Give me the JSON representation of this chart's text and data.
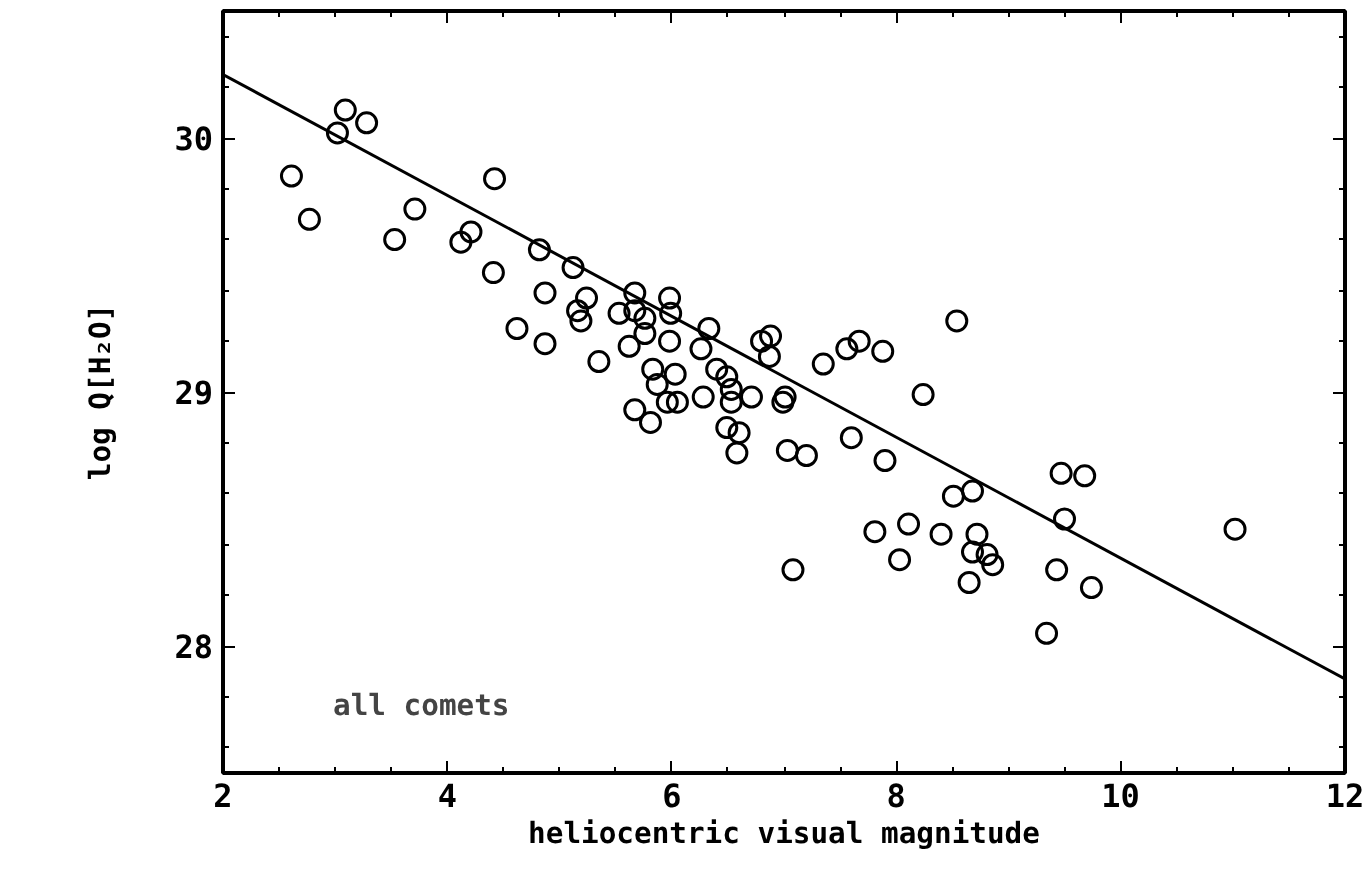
{
  "chart_data": {
    "type": "scatter",
    "xlabel": "heliocentric visual magnitude",
    "ylabel": "log Q[H₂O]",
    "xlim": [
      2,
      12
    ],
    "ylim": [
      27.5,
      30.5
    ],
    "xticks": [
      2,
      4,
      6,
      8,
      10,
      12
    ],
    "yticks": [
      28,
      29,
      30
    ],
    "grid": false,
    "annotations": [
      "all comets"
    ],
    "series": [
      {
        "marker": "circle",
        "color": "#000000",
        "x": [
          2.61,
          2.77,
          3.02,
          3.09,
          3.28,
          3.71,
          3.53,
          4.12,
          4.21,
          4.42,
          4.41,
          4.82,
          4.87,
          5.12,
          5.24,
          5.16,
          5.19,
          4.62,
          4.87,
          5.35,
          5.53,
          5.67,
          5.62,
          5.67,
          5.76,
          5.76,
          5.98,
          5.99,
          5.98,
          5.83,
          6.03,
          5.87,
          5.96,
          6.05,
          6.26,
          6.33,
          6.28,
          6.4,
          6.49,
          6.53,
          6.53,
          6.71,
          6.8,
          6.88,
          6.87,
          7.01,
          6.99,
          5.67,
          5.81,
          6.49,
          6.6,
          6.58,
          7.08,
          7.03,
          7.35,
          7.56,
          7.67,
          7.88,
          8.54,
          8.24,
          7.2,
          7.6,
          7.9,
          8.51,
          8.68,
          9.47,
          9.68,
          9.5,
          7.81,
          8.11,
          8.4,
          8.72,
          8.68,
          8.81,
          8.86,
          8.03,
          8.65,
          9.43,
          9.74,
          9.34,
          11.02
        ],
        "values": [
          29.85,
          29.68,
          30.02,
          30.11,
          30.06,
          29.72,
          29.6,
          29.59,
          29.63,
          29.84,
          29.47,
          29.56,
          29.39,
          29.49,
          29.37,
          29.32,
          29.28,
          29.25,
          29.19,
          29.12,
          29.31,
          29.39,
          29.18,
          29.32,
          29.29,
          29.23,
          29.37,
          29.31,
          29.2,
          29.09,
          29.07,
          29.03,
          28.96,
          28.96,
          29.17,
          29.25,
          28.98,
          29.09,
          29.06,
          29.01,
          28.96,
          28.98,
          29.2,
          29.22,
          29.14,
          28.98,
          28.96,
          28.93,
          28.88,
          28.86,
          28.84,
          28.76,
          28.3,
          28.77,
          29.11,
          29.17,
          29.2,
          29.16,
          29.28,
          28.99,
          28.75,
          28.82,
          28.73,
          28.59,
          28.61,
          28.68,
          28.67,
          28.5,
          28.45,
          28.48,
          28.44,
          28.44,
          28.37,
          28.36,
          28.32,
          28.34,
          28.25,
          28.3,
          28.23,
          28.05,
          28.46
        ]
      },
      {
        "type": "line",
        "color": "#000000",
        "line_style": "solid",
        "x": [
          2,
          12
        ],
        "values": [
          30.25,
          27.87
        ]
      }
    ]
  }
}
